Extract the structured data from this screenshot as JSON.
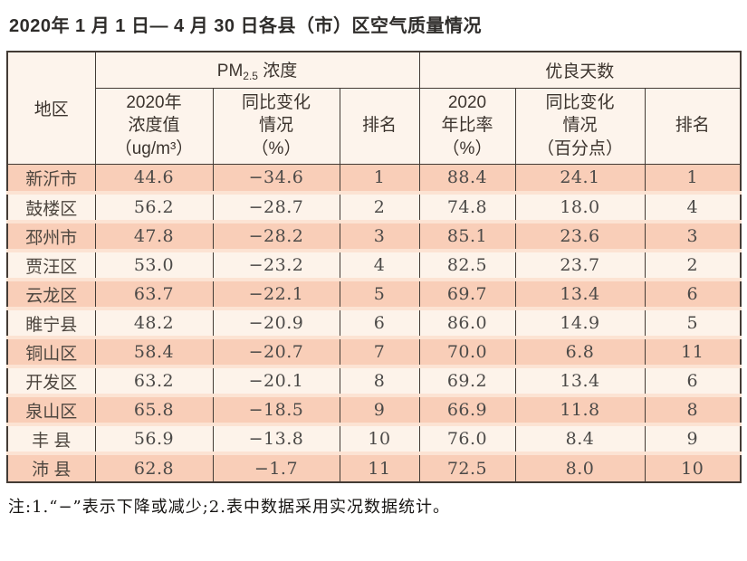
{
  "title": "2020年 1 月 1 日— 4 月 30 日各县（市）区空气质量情况",
  "footnote": "注:1.“−”表示下降或减少;2.表中数据采用实况数据统计。",
  "colors": {
    "row_odd_bg": "#f9ceb8",
    "row_even_bg": "#fdf3ea",
    "header_bg": "#fdf4ec",
    "row_separator": "#fce3d3",
    "grid_border": "#433b35"
  },
  "table": {
    "region_header": "地区",
    "pm_group": {
      "prefix": "PM",
      "sub": "2.5",
      "suffix": " 浓度"
    },
    "good_days_group": "优良天数",
    "sub_headers": [
      "2020年\n浓度值\n（ug/m³）",
      "同比变化\n情况\n（%）",
      "排名",
      "2020\n年比率\n（%）",
      "同比变化\n情况\n（百分点）",
      "排名"
    ]
  },
  "chart_data": {
    "type": "table",
    "title": "2020年1月1日—4月30日各县（市）区空气质量情况",
    "column_groups": [
      "PM2.5浓度",
      "优良天数"
    ],
    "columns": [
      "地区",
      "PM2.5 2020年浓度值（ug/m³）",
      "PM2.5 同比变化情况（%）",
      "PM2.5 排名",
      "优良天数 2020年比率（%）",
      "优良天数 同比变化情况（百分点）",
      "优良天数 排名"
    ],
    "rows": [
      [
        "新沂市",
        "44.6",
        "−34.6",
        "1",
        "88.4",
        "24.1",
        "1"
      ],
      [
        "鼓楼区",
        "56.2",
        "−28.7",
        "2",
        "74.8",
        "18.0",
        "4"
      ],
      [
        "邳州市",
        "47.8",
        "−28.2",
        "3",
        "85.1",
        "23.6",
        "3"
      ],
      [
        "贾汪区",
        "53.0",
        "−23.2",
        "4",
        "82.5",
        "23.7",
        "2"
      ],
      [
        "云龙区",
        "63.7",
        "−22.1",
        "5",
        "69.7",
        "13.4",
        "6"
      ],
      [
        "睢宁县",
        "48.2",
        "−20.9",
        "6",
        "86.0",
        "14.9",
        "5"
      ],
      [
        "铜山区",
        "58.4",
        "−20.7",
        "7",
        "70.0",
        "6.8",
        "11"
      ],
      [
        "开发区",
        "63.2",
        "−20.1",
        "8",
        "69.2",
        "13.4",
        "6"
      ],
      [
        "泉山区",
        "65.8",
        "−18.5",
        "9",
        "66.9",
        "11.8",
        "8"
      ],
      [
        "丰 县",
        "56.9",
        "−13.8",
        "10",
        "76.0",
        "8.4",
        "9"
      ],
      [
        "沛 县",
        "62.8",
        "−1.7",
        "11",
        "72.5",
        "8.0",
        "10"
      ]
    ]
  }
}
